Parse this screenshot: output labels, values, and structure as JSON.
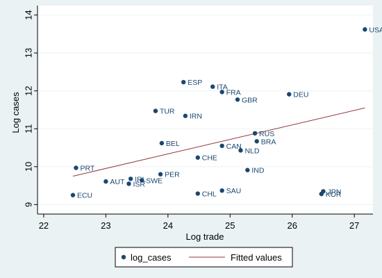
{
  "chart_data": {
    "type": "scatter",
    "xlabel": "Log trade",
    "ylabel": "Log cases",
    "xlim": [
      21.9,
      27.3
    ],
    "ylim": [
      8.75,
      14.25
    ],
    "x_ticks": [
      22,
      23,
      24,
      25,
      26,
      27
    ],
    "y_ticks": [
      9,
      10,
      11,
      12,
      13,
      14
    ],
    "grid": "horizontal",
    "legend_placement": "bottom",
    "colors": {
      "points": "#1a476f",
      "fit_line": "#90353b",
      "plot_bg": "#ffffff",
      "outer_bg": "#eaf2f3",
      "grid": "#eaf2f3"
    },
    "series": [
      {
        "name": "log_cases",
        "points": [
          {
            "label": "USA",
            "x": 27.17,
            "y": 13.62
          },
          {
            "label": "ESP",
            "x": 24.25,
            "y": 12.23
          },
          {
            "label": "ITA",
            "x": 24.72,
            "y": 12.11
          },
          {
            "label": "FRA",
            "x": 24.87,
            "y": 11.97
          },
          {
            "label": "GBR",
            "x": 25.12,
            "y": 11.77
          },
          {
            "label": "DEU",
            "x": 25.95,
            "y": 11.91
          },
          {
            "label": "TUR",
            "x": 23.8,
            "y": 11.47
          },
          {
            "label": "IRN",
            "x": 24.28,
            "y": 11.34
          },
          {
            "label": "RUS",
            "x": 25.4,
            "y": 10.88
          },
          {
            "label": "BRA",
            "x": 25.43,
            "y": 10.67
          },
          {
            "label": "BEL",
            "x": 23.9,
            "y": 10.62
          },
          {
            "label": "CAN",
            "x": 24.87,
            "y": 10.55
          },
          {
            "label": "NLD",
            "x": 25.17,
            "y": 10.43
          },
          {
            "label": "CHE",
            "x": 24.48,
            "y": 10.24
          },
          {
            "label": "PRT",
            "x": 22.52,
            "y": 9.97
          },
          {
            "label": "IND",
            "x": 25.28,
            "y": 9.91
          },
          {
            "label": "PER",
            "x": 23.88,
            "y": 9.8
          },
          {
            "label": "AUT",
            "x": 23.0,
            "y": 9.61
          },
          {
            "label": "IRL",
            "x": 23.4,
            "y": 9.68
          },
          {
            "label": "SWE",
            "x": 23.58,
            "y": 9.64
          },
          {
            "label": "ISR",
            "x": 23.37,
            "y": 9.55
          },
          {
            "label": "SAU",
            "x": 24.87,
            "y": 9.37
          },
          {
            "label": "CHL",
            "x": 24.48,
            "y": 9.29
          },
          {
            "label": "ECU",
            "x": 22.47,
            "y": 9.25
          },
          {
            "label": "JPN",
            "x": 26.5,
            "y": 9.35
          },
          {
            "label": "KOR",
            "x": 26.47,
            "y": 9.28
          }
        ]
      },
      {
        "name": "Fitted values",
        "type": "line",
        "x": [
          22.47,
          27.17
        ],
        "y": [
          9.75,
          11.55
        ]
      }
    ]
  }
}
